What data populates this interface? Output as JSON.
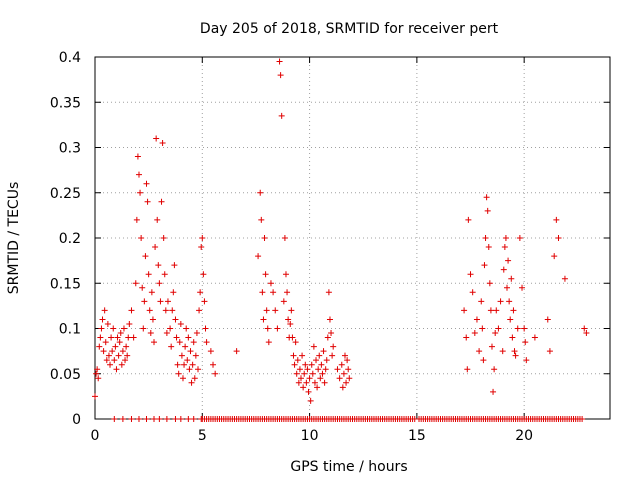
{
  "chart_data": {
    "type": "scatter",
    "title": "Day 205 of 2018, SRMTID for receiver pert",
    "xlabel": "GPS time / hours",
    "ylabel": "SRMTID / TECUs",
    "xlim": [
      0,
      24
    ],
    "ylim": [
      0,
      0.4
    ],
    "grid": true,
    "legend": "none",
    "x_ticks": [
      0,
      5,
      10,
      15,
      20
    ],
    "x_tick_labels": [
      "0",
      "5",
      "10",
      "15",
      "20"
    ],
    "y_ticks": [
      0,
      0.05,
      0.1,
      0.15,
      0.2,
      0.25,
      0.3,
      0.35,
      0.4
    ],
    "y_tick_labels": [
      "0",
      "0.05",
      "0.1",
      "0.15",
      "0.2",
      "0.25",
      "0.3",
      "0.35",
      "0.4"
    ],
    "marker": "+",
    "series": [
      {
        "name": "SRMTID",
        "color": "#e00000",
        "points": [
          [
            0.0,
            0.025
          ],
          [
            0.05,
            0.05
          ],
          [
            0.1,
            0.055
          ],
          [
            0.15,
            0.045
          ],
          [
            0.2,
            0.08
          ],
          [
            0.25,
            0.09
          ],
          [
            0.3,
            0.1
          ],
          [
            0.35,
            0.11
          ],
          [
            0.4,
            0.075
          ],
          [
            0.45,
            0.12
          ],
          [
            0.5,
            0.085
          ],
          [
            0.55,
            0.065
          ],
          [
            0.6,
            0.105
          ],
          [
            0.65,
            0.07
          ],
          [
            0.7,
            0.06
          ],
          [
            0.75,
            0.09
          ],
          [
            0.8,
            0.075
          ],
          [
            0.85,
            0.1
          ],
          [
            0.9,
            0.065
          ],
          [
            0.95,
            0.08
          ],
          [
            1.0,
            0.055
          ],
          [
            1.05,
            0.09
          ],
          [
            1.1,
            0.07
          ],
          [
            1.15,
            0.085
          ],
          [
            1.2,
            0.095
          ],
          [
            1.25,
            0.06
          ],
          [
            1.3,
            0.075
          ],
          [
            1.35,
            0.1
          ],
          [
            1.4,
            0.065
          ],
          [
            1.45,
            0.08
          ],
          [
            1.5,
            0.07
          ],
          [
            1.55,
            0.09
          ],
          [
            1.6,
            0.105
          ],
          [
            1.7,
            0.12
          ],
          [
            1.8,
            0.09
          ],
          [
            1.9,
            0.15
          ],
          [
            1.95,
            0.22
          ],
          [
            2.0,
            0.29
          ],
          [
            2.05,
            0.27
          ],
          [
            2.1,
            0.25
          ],
          [
            2.15,
            0.2
          ],
          [
            2.2,
            0.145
          ],
          [
            2.25,
            0.1
          ],
          [
            2.3,
            0.13
          ],
          [
            2.35,
            0.18
          ],
          [
            2.4,
            0.26
          ],
          [
            2.45,
            0.24
          ],
          [
            2.5,
            0.16
          ],
          [
            2.55,
            0.12
          ],
          [
            2.6,
            0.095
          ],
          [
            2.65,
            0.14
          ],
          [
            2.7,
            0.11
          ],
          [
            2.75,
            0.085
          ],
          [
            2.8,
            0.19
          ],
          [
            2.85,
            0.31
          ],
          [
            2.9,
            0.22
          ],
          [
            2.95,
            0.17
          ],
          [
            3.0,
            0.15
          ],
          [
            3.05,
            0.13
          ],
          [
            3.1,
            0.24
          ],
          [
            3.15,
            0.305
          ],
          [
            3.2,
            0.2
          ],
          [
            3.25,
            0.16
          ],
          [
            3.3,
            0.12
          ],
          [
            3.35,
            0.095
          ],
          [
            3.4,
            0.13
          ],
          [
            3.5,
            0.1
          ],
          [
            3.55,
            0.08
          ],
          [
            3.6,
            0.12
          ],
          [
            3.65,
            0.14
          ],
          [
            3.7,
            0.17
          ],
          [
            3.75,
            0.11
          ],
          [
            3.8,
            0.09
          ],
          [
            3.85,
            0.06
          ],
          [
            3.9,
            0.05
          ],
          [
            3.95,
            0.085
          ],
          [
            4.0,
            0.105
          ],
          [
            4.05,
            0.07
          ],
          [
            4.1,
            0.045
          ],
          [
            4.15,
            0.06
          ],
          [
            4.2,
            0.08
          ],
          [
            4.25,
            0.1
          ],
          [
            4.3,
            0.065
          ],
          [
            4.35,
            0.09
          ],
          [
            4.4,
            0.055
          ],
          [
            4.45,
            0.075
          ],
          [
            4.5,
            0.04
          ],
          [
            4.55,
            0.06
          ],
          [
            4.6,
            0.085
          ],
          [
            4.65,
            0.045
          ],
          [
            4.7,
            0.07
          ],
          [
            4.75,
            0.095
          ],
          [
            4.8,
            0.055
          ],
          [
            4.85,
            0.12
          ],
          [
            4.9,
            0.14
          ],
          [
            4.95,
            0.19
          ],
          [
            5.0,
            0.2
          ],
          [
            5.05,
            0.16
          ],
          [
            5.1,
            0.13
          ],
          [
            5.15,
            0.1
          ],
          [
            5.2,
            0.085
          ],
          [
            5.4,
            0.075
          ],
          [
            5.5,
            0.06
          ],
          [
            5.6,
            0.05
          ],
          [
            6.6,
            0.075
          ],
          [
            7.6,
            0.18
          ],
          [
            7.7,
            0.25
          ],
          [
            7.75,
            0.22
          ],
          [
            7.8,
            0.14
          ],
          [
            7.85,
            0.11
          ],
          [
            7.9,
            0.2
          ],
          [
            7.95,
            0.16
          ],
          [
            8.0,
            0.12
          ],
          [
            8.05,
            0.1
          ],
          [
            8.1,
            0.085
          ],
          [
            8.2,
            0.15
          ],
          [
            8.3,
            0.14
          ],
          [
            8.4,
            0.12
          ],
          [
            8.5,
            0.1
          ],
          [
            8.6,
            0.395
          ],
          [
            8.65,
            0.38
          ],
          [
            8.7,
            0.335
          ],
          [
            8.8,
            0.13
          ],
          [
            8.85,
            0.2
          ],
          [
            8.9,
            0.16
          ],
          [
            8.95,
            0.14
          ],
          [
            9.0,
            0.11
          ],
          [
            9.05,
            0.09
          ],
          [
            9.1,
            0.105
          ],
          [
            9.15,
            0.12
          ],
          [
            9.2,
            0.09
          ],
          [
            9.25,
            0.07
          ],
          [
            9.3,
            0.06
          ],
          [
            9.35,
            0.085
          ],
          [
            9.4,
            0.05
          ],
          [
            9.45,
            0.065
          ],
          [
            9.5,
            0.04
          ],
          [
            9.55,
            0.055
          ],
          [
            9.6,
            0.045
          ],
          [
            9.65,
            0.07
          ],
          [
            9.7,
            0.035
          ],
          [
            9.75,
            0.05
          ],
          [
            9.8,
            0.06
          ],
          [
            9.85,
            0.04
          ],
          [
            9.9,
            0.055
          ],
          [
            9.95,
            0.03
          ],
          [
            10.0,
            0.045
          ],
          [
            10.05,
            0.02
          ],
          [
            10.1,
            0.06
          ],
          [
            10.15,
            0.05
          ],
          [
            10.2,
            0.08
          ],
          [
            10.25,
            0.04
          ],
          [
            10.3,
            0.065
          ],
          [
            10.35,
            0.035
          ],
          [
            10.4,
            0.055
          ],
          [
            10.45,
            0.07
          ],
          [
            10.5,
            0.045
          ],
          [
            10.55,
            0.06
          ],
          [
            10.6,
            0.05
          ],
          [
            10.65,
            0.075
          ],
          [
            10.7,
            0.04
          ],
          [
            10.75,
            0.055
          ],
          [
            10.8,
            0.065
          ],
          [
            10.85,
            0.09
          ],
          [
            10.9,
            0.14
          ],
          [
            10.95,
            0.11
          ],
          [
            11.0,
            0.095
          ],
          [
            11.05,
            0.07
          ],
          [
            11.1,
            0.08
          ],
          [
            11.3,
            0.055
          ],
          [
            11.4,
            0.045
          ],
          [
            11.5,
            0.06
          ],
          [
            11.55,
            0.035
          ],
          [
            11.6,
            0.05
          ],
          [
            11.65,
            0.07
          ],
          [
            11.7,
            0.04
          ],
          [
            11.75,
            0.065
          ],
          [
            11.8,
            0.055
          ],
          [
            11.85,
            0.045
          ],
          [
            17.2,
            0.12
          ],
          [
            17.3,
            0.09
          ],
          [
            17.35,
            0.055
          ],
          [
            17.4,
            0.22
          ],
          [
            17.5,
            0.16
          ],
          [
            17.6,
            0.14
          ],
          [
            17.7,
            0.095
          ],
          [
            17.8,
            0.11
          ],
          [
            17.9,
            0.075
          ],
          [
            18.0,
            0.13
          ],
          [
            18.05,
            0.1
          ],
          [
            18.1,
            0.065
          ],
          [
            18.15,
            0.17
          ],
          [
            18.2,
            0.2
          ],
          [
            18.25,
            0.245
          ],
          [
            18.3,
            0.23
          ],
          [
            18.35,
            0.19
          ],
          [
            18.4,
            0.15
          ],
          [
            18.45,
            0.12
          ],
          [
            18.5,
            0.08
          ],
          [
            18.55,
            0.03
          ],
          [
            18.6,
            0.055
          ],
          [
            18.65,
            0.095
          ],
          [
            18.7,
            0.12
          ],
          [
            18.8,
            0.1
          ],
          [
            18.9,
            0.13
          ],
          [
            19.0,
            0.075
          ],
          [
            19.05,
            0.165
          ],
          [
            19.1,
            0.19
          ],
          [
            19.15,
            0.2
          ],
          [
            19.2,
            0.145
          ],
          [
            19.25,
            0.175
          ],
          [
            19.3,
            0.13
          ],
          [
            19.35,
            0.11
          ],
          [
            19.4,
            0.155
          ],
          [
            19.45,
            0.09
          ],
          [
            19.5,
            0.12
          ],
          [
            19.55,
            0.075
          ],
          [
            19.6,
            0.07
          ],
          [
            19.7,
            0.1
          ],
          [
            19.8,
            0.2
          ],
          [
            19.9,
            0.145
          ],
          [
            20.0,
            0.1
          ],
          [
            20.05,
            0.085
          ],
          [
            20.1,
            0.065
          ],
          [
            20.5,
            0.09
          ],
          [
            21.1,
            0.11
          ],
          [
            21.2,
            0.075
          ],
          [
            21.4,
            0.18
          ],
          [
            21.5,
            0.22
          ],
          [
            21.6,
            0.2
          ],
          [
            21.9,
            0.155
          ],
          [
            22.8,
            0.1
          ],
          [
            22.9,
            0.095
          ]
        ]
      }
    ],
    "zero_row_x": [
      0.9,
      1.3,
      1.7,
      2.05,
      2.4,
      2.75,
      3.0,
      3.35,
      3.75,
      4.0,
      4.35,
      4.6,
      4.95,
      5.0,
      5.1,
      5.2,
      5.3,
      5.4,
      5.5,
      5.6,
      5.7,
      5.8,
      5.9,
      6.0,
      6.1,
      6.2,
      6.3,
      6.4,
      6.5,
      6.6,
      6.7,
      6.8,
      6.9,
      7.0,
      7.1,
      7.2,
      7.3,
      7.4,
      7.5,
      7.6,
      7.7,
      7.8,
      7.9,
      8.0,
      8.1,
      8.2,
      8.3,
      8.4,
      8.5,
      8.6,
      8.7,
      8.8,
      8.9,
      9.0,
      9.1,
      9.2,
      9.3,
      9.4,
      9.5,
      9.6,
      9.7,
      9.8,
      9.9,
      10.0,
      10.1,
      10.2,
      10.3,
      10.4,
      10.5,
      10.6,
      10.7,
      10.8,
      10.9,
      11.0,
      11.1,
      11.2,
      11.3,
      11.4,
      11.5,
      11.6,
      11.7,
      11.8,
      11.9,
      12.0,
      12.1,
      12.2,
      12.3,
      12.4,
      12.5,
      12.6,
      12.7,
      12.8,
      12.9,
      13.0,
      13.1,
      13.2,
      13.3,
      13.4,
      13.5,
      13.6,
      13.7,
      13.8,
      13.9,
      14.0,
      14.1,
      14.2,
      14.3,
      14.4,
      14.5,
      14.6,
      14.7,
      14.8,
      14.9,
      15.1,
      15.2,
      15.3,
      15.4,
      15.5,
      15.6,
      15.7,
      15.8,
      15.9,
      16.0,
      16.1,
      16.2,
      16.3,
      16.4,
      16.5,
      16.6,
      16.7,
      16.8,
      16.9,
      17.0,
      17.1,
      17.2,
      17.3,
      17.4,
      17.5,
      17.6,
      17.7,
      17.8,
      17.9,
      18.0,
      18.1,
      18.2,
      18.3,
      18.4,
      18.5,
      18.6,
      18.7,
      18.8,
      18.9,
      19.0,
      19.1,
      19.2,
      19.3,
      19.4,
      19.5,
      19.6,
      19.7,
      19.8,
      19.9,
      20.0,
      20.1,
      20.2,
      20.3,
      20.4,
      20.5,
      20.6,
      20.7,
      20.8,
      20.9,
      21.0,
      21.1,
      21.2,
      21.3,
      21.4,
      21.5,
      21.6,
      21.7,
      21.8,
      21.9,
      22.0,
      22.1,
      22.2,
      22.3,
      22.4,
      22.5,
      22.6,
      22.7
    ]
  }
}
